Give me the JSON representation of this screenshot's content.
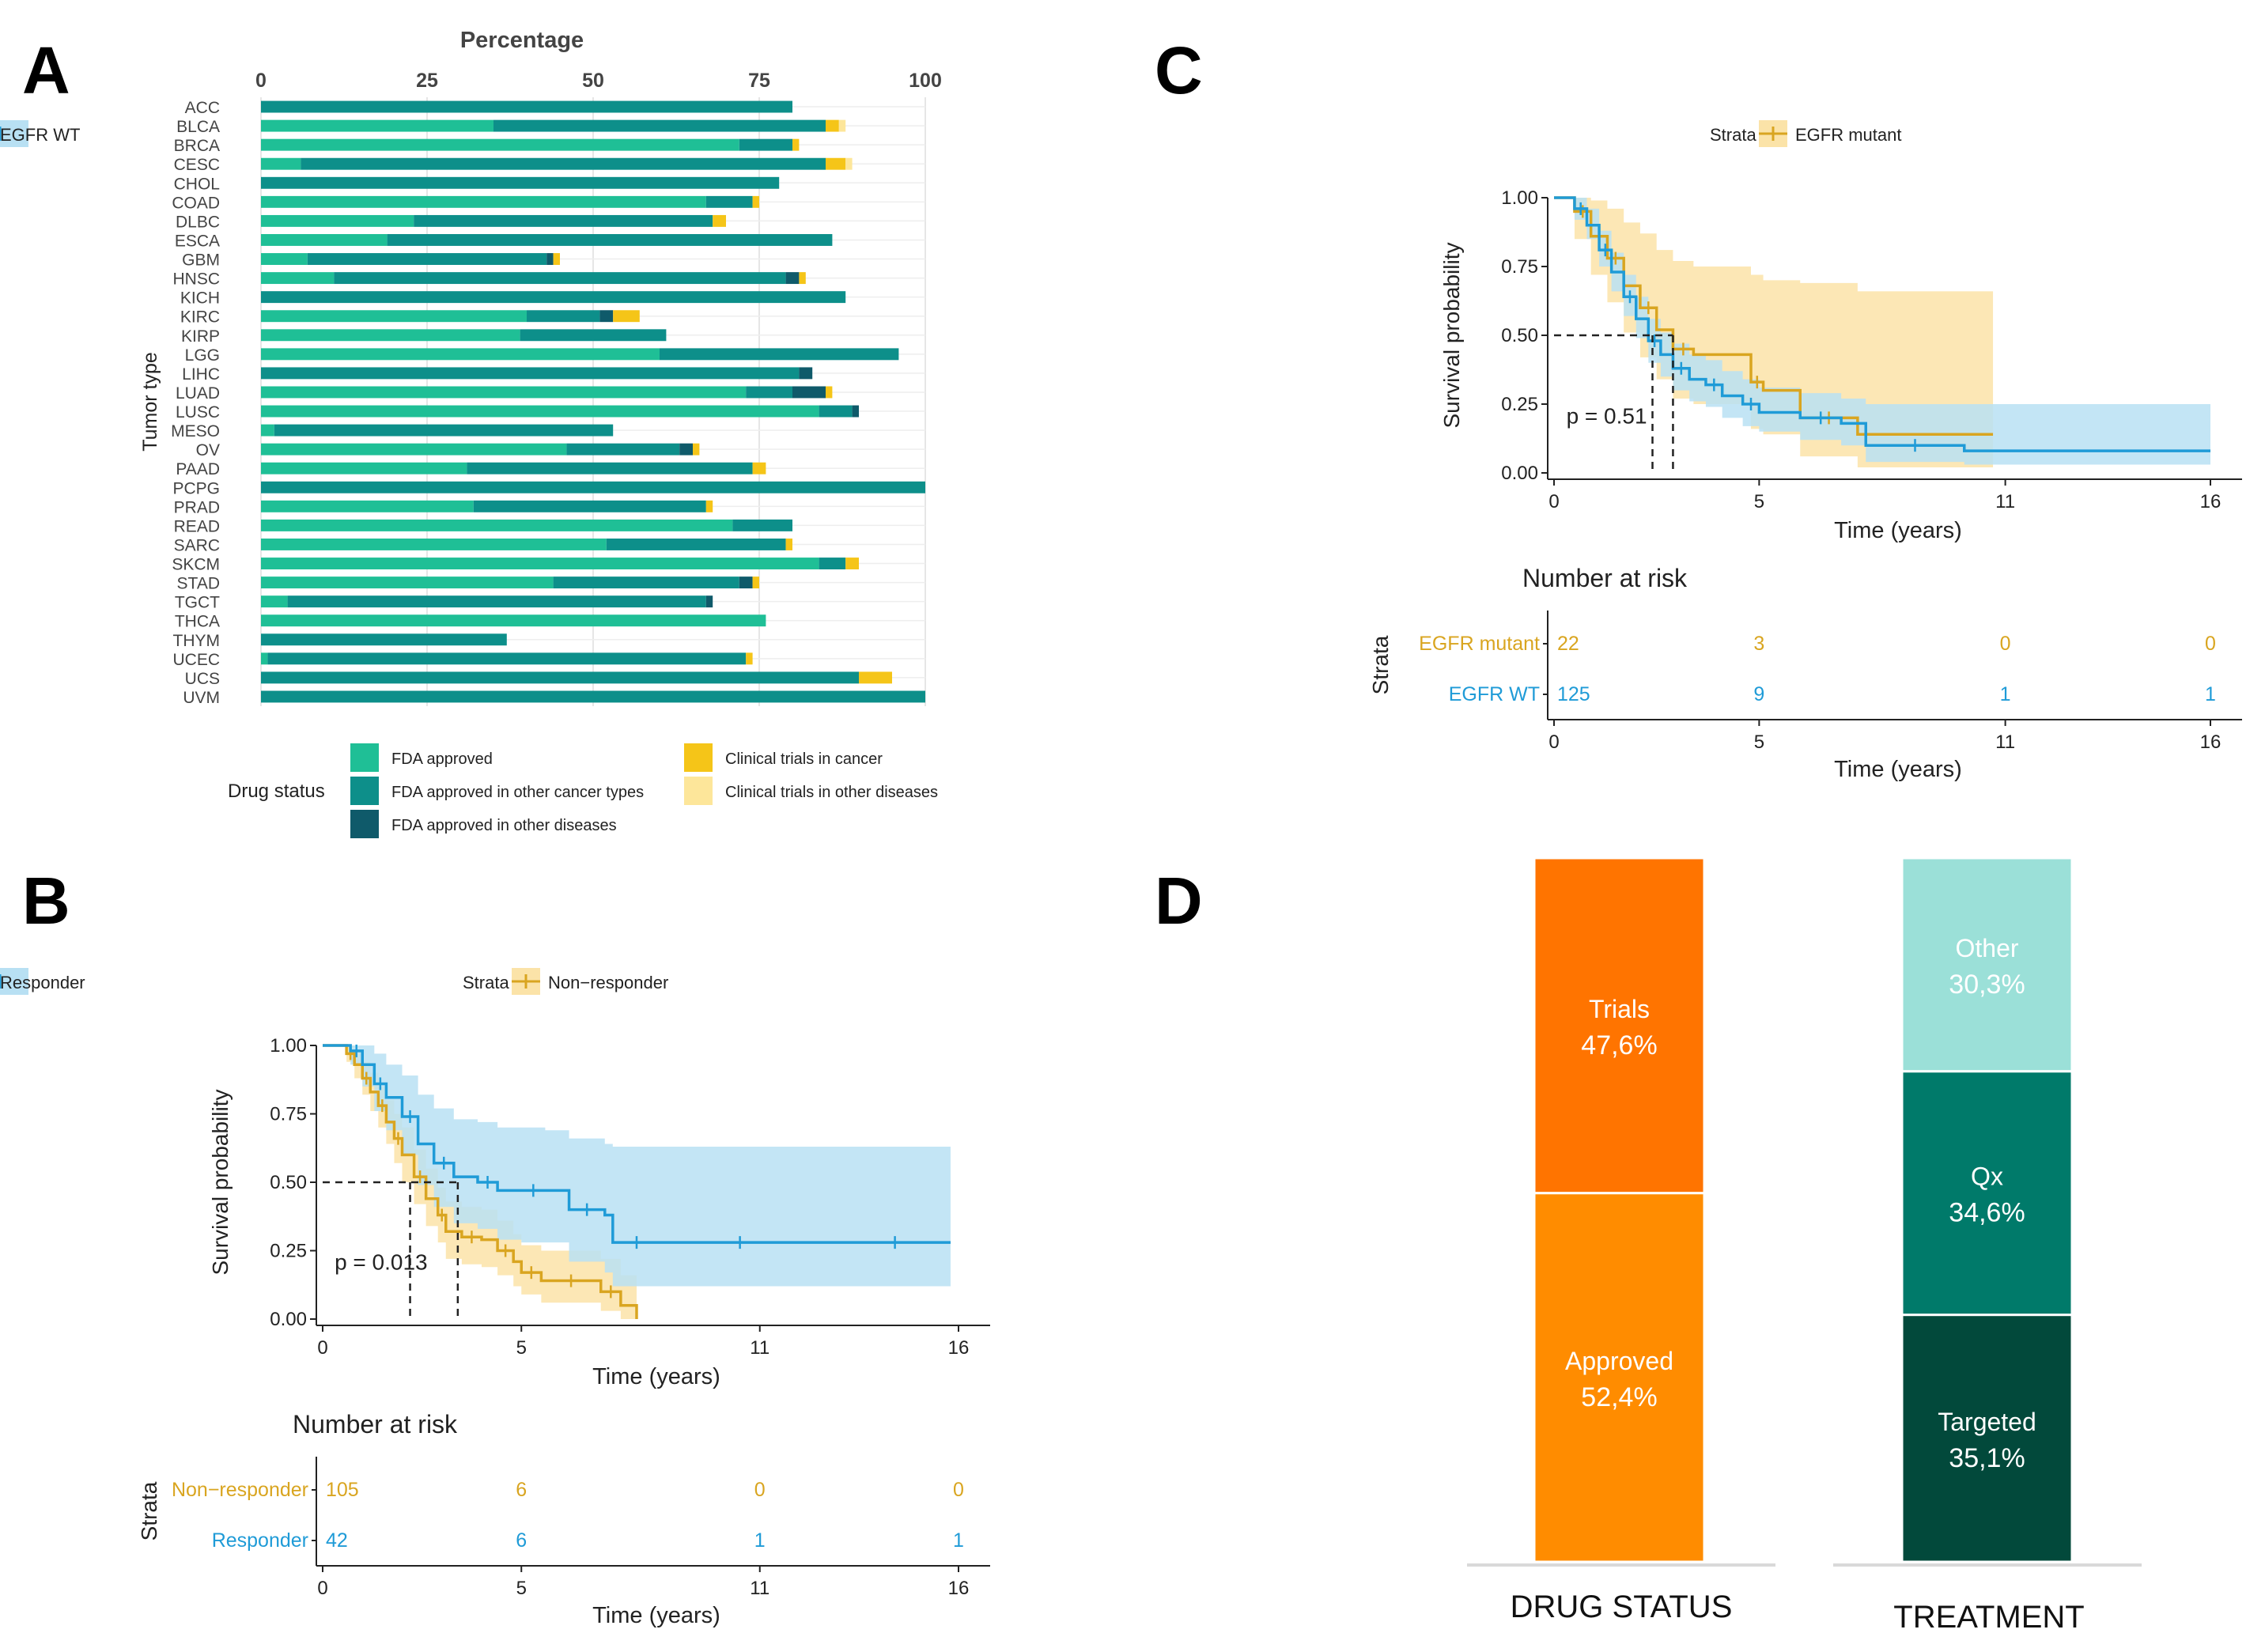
{
  "colors": {
    "fda": "#1fbf96",
    "fda_other_cancer": "#0d8f8a",
    "fda_other_disease": "#0f5a6a",
    "trial_cancer": "#f5c518",
    "trial_other": "#fde69a",
    "km_orange": "#d9a520",
    "km_orange_band": "#fbe3a8",
    "km_blue": "#1f9bd7",
    "km_blue_band": "#b8e0f3",
    "trials": "#ff7400",
    "approved": "#ff8c00",
    "other": "#9be0d8",
    "qx": "#007a6a",
    "targeted": "#02493b"
  },
  "panels": {
    "a": "A",
    "b": "B",
    "c": "C",
    "d": "D"
  },
  "chart_data": [
    {
      "id": "A",
      "type": "bar",
      "orientation": "horizontal-stacked",
      "title": "Percentage",
      "ylabel": "Tumor type",
      "xlim": [
        0,
        100
      ],
      "xticks": [
        "0",
        "25",
        "50",
        "75",
        "100"
      ],
      "categories": [
        "ACC",
        "BLCA",
        "BRCA",
        "CESC",
        "CHOL",
        "COAD",
        "DLBC",
        "ESCA",
        "GBM",
        "HNSC",
        "KICH",
        "KIRC",
        "KIRP",
        "LGG",
        "LIHC",
        "LUAD",
        "LUSC",
        "MESO",
        "OV",
        "PAAD",
        "PCPG",
        "PRAD",
        "READ",
        "SARC",
        "SKCM",
        "STAD",
        "TGCT",
        "THCA",
        "THYM",
        "UCEC",
        "UCS",
        "UVM"
      ],
      "series": [
        {
          "name": "FDA approved",
          "color_key": "fda",
          "values": [
            0,
            35,
            72,
            6,
            0,
            67,
            23,
            19,
            7,
            11,
            0,
            40,
            39,
            60,
            0,
            73,
            84,
            2,
            46,
            31,
            0,
            32,
            71,
            52,
            84,
            44,
            4,
            76,
            0,
            1,
            0,
            0
          ]
        },
        {
          "name": "FDA approved in other cancer types",
          "color_key": "fda_other_cancer",
          "values": [
            80,
            50,
            8,
            79,
            78,
            7,
            45,
            67,
            36,
            68,
            88,
            11,
            22,
            36,
            81,
            7,
            5,
            51,
            17,
            43,
            100,
            35,
            9,
            27,
            4,
            28,
            63,
            0,
            37,
            72,
            90,
            100
          ]
        },
        {
          "name": "FDA approved in other diseases",
          "color_key": "fda_other_disease",
          "values": [
            0,
            0,
            0,
            0,
            0,
            0,
            0,
            0,
            1,
            2,
            0,
            2,
            0,
            0,
            2,
            5,
            1,
            0,
            2,
            0,
            0,
            0,
            0,
            0,
            0,
            2,
            1,
            0,
            0,
            0,
            0,
            0
          ]
        },
        {
          "name": "Clinical trials in cancer",
          "color_key": "trial_cancer",
          "values": [
            0,
            2,
            1,
            3,
            0,
            1,
            2,
            0,
            1,
            1,
            0,
            4,
            0,
            0,
            0,
            1,
            0,
            0,
            1,
            2,
            0,
            1,
            0,
            1,
            2,
            1,
            0,
            0,
            0,
            1,
            5,
            0
          ]
        },
        {
          "name": "Clinical trials in other diseases",
          "color_key": "trial_other",
          "values": [
            0,
            1,
            0,
            1,
            0,
            0,
            0,
            0,
            0,
            0,
            0,
            0,
            0,
            0,
            0,
            0,
            0,
            0,
            0,
            0,
            0,
            0,
            0,
            0,
            0,
            0,
            0,
            0,
            0,
            0,
            0,
            0
          ]
        }
      ],
      "legend": {
        "title": "Drug status",
        "items": [
          "FDA approved",
          "FDA approved in other cancer types",
          "FDA approved in other diseases",
          "Clinical trials in cancer",
          "Clinical trials in other diseases"
        ]
      }
    },
    {
      "id": "B",
      "type": "line",
      "subtype": "kaplan-meier",
      "xlabel": "Time (years)",
      "ylabel": "Survival probability",
      "xlim": [
        0,
        16
      ],
      "ylim": [
        0,
        1
      ],
      "xticks": [
        "0",
        "5",
        "11",
        "16"
      ],
      "yticks": [
        "0.00",
        "0.25",
        "0.50",
        "0.75",
        "1.00"
      ],
      "pvalue": "p = 0.013",
      "median": [
        2.2,
        3.4
      ],
      "legend": {
        "title": "Strata",
        "items": [
          "Non−responder",
          "Responder"
        ]
      },
      "series": [
        {
          "name": "Non−responder",
          "color_key": "km_orange",
          "band_key": "km_orange_band",
          "x": [
            0,
            0.6,
            0.8,
            1.0,
            1.2,
            1.4,
            1.6,
            1.8,
            2.0,
            2.3,
            2.6,
            2.9,
            3.1,
            3.5,
            4.0,
            4.4,
            4.8,
            5.0,
            5.5,
            6.0,
            6.5,
            7.0,
            7.5,
            7.9
          ],
          "y": [
            1.0,
            0.97,
            0.93,
            0.88,
            0.83,
            0.78,
            0.72,
            0.66,
            0.6,
            0.52,
            0.44,
            0.38,
            0.32,
            0.3,
            0.29,
            0.25,
            0.21,
            0.17,
            0.14,
            0.14,
            0.14,
            0.1,
            0.05,
            0.0
          ],
          "lower": [
            1.0,
            0.94,
            0.88,
            0.82,
            0.76,
            0.7,
            0.64,
            0.57,
            0.5,
            0.42,
            0.34,
            0.28,
            0.22,
            0.2,
            0.19,
            0.16,
            0.12,
            0.09,
            0.06,
            0.06,
            0.06,
            0.03,
            0.0,
            0.0
          ],
          "upper": [
            1.0,
            1.0,
            0.98,
            0.94,
            0.9,
            0.85,
            0.8,
            0.75,
            0.7,
            0.62,
            0.55,
            0.48,
            0.43,
            0.41,
            0.4,
            0.36,
            0.31,
            0.27,
            0.25,
            0.25,
            0.25,
            0.22,
            0.16,
            0.06
          ]
        },
        {
          "name": "Responder",
          "color_key": "km_blue",
          "band_key": "km_blue_band",
          "x": [
            0,
            0.7,
            1.0,
            1.3,
            1.6,
            2.0,
            2.4,
            2.8,
            3.3,
            3.9,
            4.4,
            5.0,
            5.6,
            6.2,
            7.1,
            7.3,
            8.5,
            10.0,
            11.0,
            13.0,
            15.8
          ],
          "y": [
            1.0,
            0.98,
            0.93,
            0.86,
            0.81,
            0.74,
            0.64,
            0.57,
            0.52,
            0.5,
            0.47,
            0.47,
            0.47,
            0.4,
            0.38,
            0.28,
            0.28,
            0.28,
            0.28,
            0.28,
            0.28
          ],
          "lower": [
            1.0,
            0.93,
            0.85,
            0.76,
            0.69,
            0.6,
            0.49,
            0.41,
            0.35,
            0.33,
            0.29,
            0.28,
            0.28,
            0.21,
            0.17,
            0.12,
            0.12,
            0.12,
            0.12,
            0.12,
            0.12
          ],
          "upper": [
            1.0,
            1.0,
            1.0,
            0.97,
            0.93,
            0.89,
            0.82,
            0.77,
            0.73,
            0.72,
            0.7,
            0.7,
            0.69,
            0.66,
            0.64,
            0.63,
            0.63,
            0.63,
            0.63,
            0.63,
            0.63
          ]
        }
      ],
      "risk_table": {
        "title": "Number at risk",
        "strata_label": "Strata",
        "xlabel": "Time (years)",
        "rows": [
          {
            "label": "Non−responder",
            "color_key": "km_orange",
            "values": [
              "105",
              "6",
              "0",
              "0"
            ]
          },
          {
            "label": "Responder",
            "color_key": "km_blue",
            "values": [
              "42",
              "6",
              "1",
              "1"
            ]
          }
        ],
        "times": [
          0,
          5,
          11,
          16
        ]
      }
    },
    {
      "id": "C",
      "type": "line",
      "subtype": "kaplan-meier",
      "xlabel": "Time (years)",
      "ylabel": "Survival probability",
      "xlim": [
        0,
        16
      ],
      "ylim": [
        0,
        1
      ],
      "xticks": [
        "0",
        "5",
        "11",
        "16"
      ],
      "yticks": [
        "0.00",
        "0.25",
        "0.50",
        "0.75",
        "1.00"
      ],
      "pvalue": "p = 0.51",
      "median": [
        2.4,
        2.9
      ],
      "legend": {
        "title": "Strata",
        "items": [
          "EGFR mutant",
          "EGFR WT"
        ]
      },
      "series": [
        {
          "name": "EGFR mutant",
          "color_key": "km_orange",
          "band_key": "km_orange_band",
          "x": [
            0,
            0.5,
            0.9,
            1.3,
            1.7,
            2.1,
            2.5,
            2.9,
            3.4,
            4.8,
            5.1,
            6.0,
            7.4,
            10.7
          ],
          "y": [
            1.0,
            0.95,
            0.86,
            0.78,
            0.68,
            0.6,
            0.52,
            0.45,
            0.43,
            0.33,
            0.3,
            0.2,
            0.14,
            0.14
          ],
          "lower": [
            1.0,
            0.85,
            0.72,
            0.62,
            0.51,
            0.42,
            0.34,
            0.27,
            0.25,
            0.16,
            0.14,
            0.06,
            0.02,
            0.02
          ],
          "upper": [
            1.0,
            1.0,
            0.99,
            0.96,
            0.91,
            0.87,
            0.81,
            0.77,
            0.75,
            0.72,
            0.7,
            0.69,
            0.66,
            0.66
          ]
        },
        {
          "name": "EGFR WT",
          "color_key": "km_blue",
          "band_key": "km_blue_band",
          "x": [
            0,
            0.5,
            0.8,
            1.1,
            1.4,
            1.7,
            2.0,
            2.3,
            2.6,
            2.9,
            3.3,
            3.7,
            4.1,
            4.6,
            5.0,
            6.0,
            7.0,
            7.6,
            10.0,
            16.0
          ],
          "y": [
            1.0,
            0.96,
            0.9,
            0.81,
            0.73,
            0.64,
            0.56,
            0.48,
            0.43,
            0.38,
            0.34,
            0.32,
            0.28,
            0.25,
            0.22,
            0.2,
            0.18,
            0.1,
            0.08,
            0.08
          ],
          "lower": [
            1.0,
            0.92,
            0.85,
            0.75,
            0.66,
            0.57,
            0.49,
            0.4,
            0.35,
            0.3,
            0.26,
            0.24,
            0.2,
            0.17,
            0.15,
            0.12,
            0.1,
            0.04,
            0.03,
            0.03
          ],
          "upper": [
            1.0,
            1.0,
            0.96,
            0.88,
            0.8,
            0.72,
            0.64,
            0.56,
            0.51,
            0.47,
            0.43,
            0.41,
            0.37,
            0.34,
            0.31,
            0.29,
            0.27,
            0.25,
            0.25,
            0.25
          ]
        }
      ],
      "risk_table": {
        "title": "Number at risk",
        "strata_label": "Strata",
        "xlabel": "Time (years)",
        "rows": [
          {
            "label": "EGFR mutant",
            "color_key": "km_orange",
            "values": [
              "22",
              "3",
              "0",
              "0"
            ]
          },
          {
            "label": "EGFR WT",
            "color_key": "km_blue",
            "values": [
              "125",
              "9",
              "1",
              "1"
            ]
          }
        ],
        "times": [
          0,
          5,
          11,
          16
        ]
      }
    },
    {
      "id": "D",
      "type": "bar",
      "orientation": "vertical-stacked-100",
      "categories": [
        "DRUG STATUS",
        "TREATMENT"
      ],
      "stacks": [
        {
          "category": "DRUG STATUS",
          "segments": [
            {
              "name": "Approved",
              "value": 52.4,
              "label": "52,4%",
              "color_key": "approved"
            },
            {
              "name": "Trials",
              "value": 47.6,
              "label": "47,6%",
              "color_key": "trials"
            }
          ]
        },
        {
          "category": "TREATMENT",
          "segments": [
            {
              "name": "Targeted",
              "value": 35.1,
              "label": "35,1%",
              "color_key": "targeted"
            },
            {
              "name": "Qx",
              "value": 34.6,
              "label": "34,6%",
              "color_key": "qx"
            },
            {
              "name": "Other",
              "value": 30.3,
              "label": "30,3%",
              "color_key": "other"
            }
          ]
        }
      ]
    }
  ]
}
